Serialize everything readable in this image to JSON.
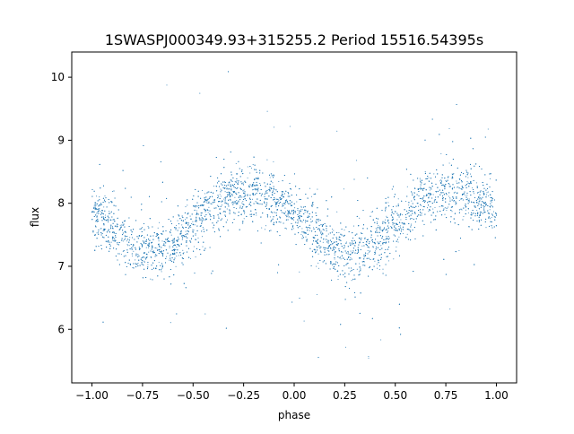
{
  "chart_data": {
    "type": "scatter",
    "title": "1SWASPJ000349.93+315255.2 Period 15516.54395s",
    "xlabel": "phase",
    "ylabel": "flux",
    "xlim": [
      -1.1,
      1.1
    ],
    "ylim": [
      5.15,
      10.4
    ],
    "xticks": [
      -1.0,
      -0.75,
      -0.5,
      -0.25,
      0.0,
      0.25,
      0.5,
      0.75,
      1.0
    ],
    "xtick_labels": [
      "−1.00",
      "−0.75",
      "−0.50",
      "−0.25",
      "0.00",
      "0.25",
      "0.50",
      "0.75",
      "1.00"
    ],
    "yticks": [
      6,
      7,
      8,
      9,
      10
    ],
    "ytick_labels": [
      "6",
      "7",
      "8",
      "9",
      "10"
    ],
    "grid": false,
    "legend": "none",
    "marker_color": "#1f77b4",
    "series": [
      {
        "phase": [
          -1.0,
          -0.95,
          -0.9,
          -0.85,
          -0.8,
          -0.75,
          -0.7,
          -0.65,
          -0.6,
          -0.55,
          -0.5,
          -0.45,
          -0.4,
          -0.35,
          -0.3,
          -0.25,
          -0.2,
          -0.15,
          -0.1,
          -0.05,
          0.0,
          0.05,
          0.1,
          0.15,
          0.2,
          0.25,
          0.3,
          0.35,
          0.4,
          0.45,
          0.5,
          0.55,
          0.6,
          0.65,
          0.7,
          0.75,
          0.8,
          0.85,
          0.9,
          0.95,
          1.0
        ],
        "flux_median": [
          7.85,
          7.75,
          7.6,
          7.45,
          7.32,
          7.25,
          7.22,
          7.25,
          7.35,
          7.5,
          7.65,
          7.82,
          7.97,
          8.07,
          8.13,
          8.15,
          8.15,
          8.13,
          8.07,
          7.97,
          7.85,
          7.7,
          7.55,
          7.4,
          7.28,
          7.22,
          7.22,
          7.25,
          7.35,
          7.5,
          7.65,
          7.82,
          7.97,
          8.07,
          8.12,
          8.14,
          8.14,
          8.12,
          8.07,
          8.0,
          7.9
        ]
      }
    ]
  }
}
